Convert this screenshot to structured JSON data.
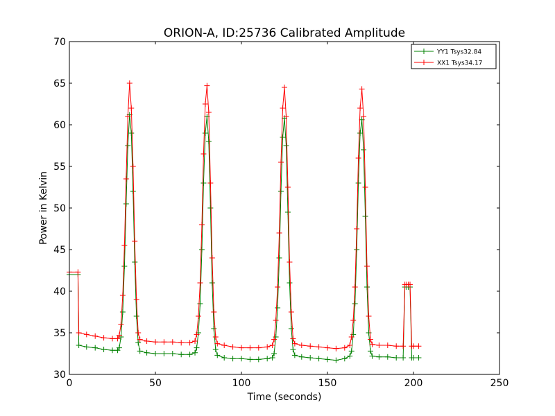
{
  "chart_data": {
    "type": "line",
    "title": "ORION-A, ID:25736 Calibrated Amplitude",
    "xlabel": "Time (seconds)",
    "ylabel": "Power in Kelvin",
    "xlim": [
      0,
      250
    ],
    "ylim": [
      30,
      70
    ],
    "xticks": [
      0,
      50,
      100,
      150,
      200,
      250
    ],
    "yticks": [
      30,
      35,
      40,
      45,
      50,
      55,
      60,
      65,
      70
    ],
    "grid": false,
    "legend_position": "top-right",
    "marker": "+",
    "series": [
      {
        "name": "YY1 Tsys32.84",
        "color": "#008000",
        "x": [
          0,
          5,
          5.5,
          10,
          15,
          20,
          25,
          28,
          29,
          30,
          31,
          32,
          33,
          34,
          35,
          36,
          37,
          38,
          39,
          40,
          41,
          45,
          50,
          55,
          60,
          65,
          70,
          73,
          74,
          75,
          76,
          77,
          78,
          79,
          80,
          81,
          82,
          83,
          84,
          85,
          86,
          90,
          95,
          100,
          105,
          110,
          115,
          118,
          119,
          120,
          121,
          122,
          123,
          124,
          125,
          126,
          127,
          128,
          129,
          130,
          131,
          135,
          140,
          145,
          150,
          155,
          160,
          163,
          164,
          165,
          166,
          167,
          168,
          169,
          170,
          171,
          172,
          173,
          174,
          175,
          176,
          180,
          185,
          190,
          194,
          195,
          196,
          197,
          198,
          199,
          200,
          203
        ],
        "y": [
          42.0,
          42.0,
          33.5,
          33.3,
          33.2,
          33.0,
          32.9,
          32.9,
          33.2,
          34.5,
          37.5,
          43.0,
          50.5,
          57.5,
          61.2,
          59.0,
          52.0,
          43.5,
          37.0,
          33.8,
          32.8,
          32.6,
          32.5,
          32.5,
          32.5,
          32.4,
          32.4,
          32.6,
          33.2,
          35.0,
          38.5,
          45.0,
          53.0,
          59.0,
          61.0,
          58.0,
          50.0,
          41.0,
          35.5,
          33.0,
          32.3,
          32.0,
          31.9,
          31.9,
          31.8,
          31.8,
          31.9,
          32.0,
          32.5,
          34.5,
          38.0,
          44.0,
          52.0,
          58.5,
          60.8,
          57.5,
          49.5,
          41.0,
          35.5,
          33.0,
          32.3,
          32.1,
          32.0,
          31.9,
          31.8,
          31.7,
          31.9,
          32.2,
          32.8,
          34.8,
          38.5,
          45.0,
          53.0,
          59.0,
          60.6,
          57.0,
          49.0,
          40.5,
          35.0,
          32.8,
          32.2,
          32.1,
          32.1,
          32.0,
          32.0,
          40.5,
          40.5,
          40.5,
          40.5,
          32.0,
          32.0,
          32.0
        ]
      },
      {
        "name": "XX1 Tsys34.17",
        "color": "#ff0000",
        "x": [
          0,
          5,
          5.5,
          10,
          15,
          20,
          25,
          28,
          29,
          30,
          31,
          32,
          33,
          34,
          35,
          36,
          37,
          38,
          39,
          40,
          41,
          45,
          50,
          55,
          60,
          65,
          70,
          73,
          74,
          75,
          76,
          77,
          78,
          79,
          80,
          81,
          82,
          83,
          84,
          85,
          86,
          90,
          95,
          100,
          105,
          110,
          115,
          118,
          119,
          120,
          121,
          122,
          123,
          124,
          125,
          126,
          127,
          128,
          129,
          130,
          131,
          135,
          140,
          145,
          150,
          155,
          160,
          163,
          164,
          165,
          166,
          167,
          168,
          169,
          170,
          171,
          172,
          173,
          174,
          175,
          176,
          180,
          185,
          190,
          194,
          195,
          196,
          197,
          198,
          199,
          200,
          203
        ],
        "y": [
          42.3,
          42.3,
          35.0,
          34.8,
          34.6,
          34.4,
          34.3,
          34.3,
          34.7,
          36.0,
          39.5,
          45.5,
          53.5,
          61.0,
          65.0,
          62.0,
          55.0,
          46.0,
          39.0,
          35.0,
          34.2,
          34.0,
          33.9,
          33.9,
          33.9,
          33.8,
          33.8,
          34.0,
          34.8,
          37.0,
          41.0,
          48.0,
          56.5,
          62.5,
          64.7,
          61.5,
          53.0,
          44.0,
          37.5,
          34.5,
          33.7,
          33.5,
          33.3,
          33.2,
          33.2,
          33.2,
          33.3,
          33.5,
          34.2,
          36.5,
          40.5,
          47.0,
          55.5,
          62.0,
          64.5,
          61.0,
          52.5,
          43.5,
          37.5,
          34.3,
          33.7,
          33.5,
          33.4,
          33.3,
          33.2,
          33.1,
          33.2,
          33.5,
          34.5,
          36.5,
          40.5,
          47.5,
          56.0,
          62.0,
          64.3,
          61.0,
          52.5,
          43.0,
          37.0,
          34.2,
          33.6,
          33.5,
          33.5,
          33.4,
          33.4,
          40.8,
          40.8,
          40.8,
          40.8,
          33.4,
          33.4,
          33.4
        ]
      }
    ]
  }
}
